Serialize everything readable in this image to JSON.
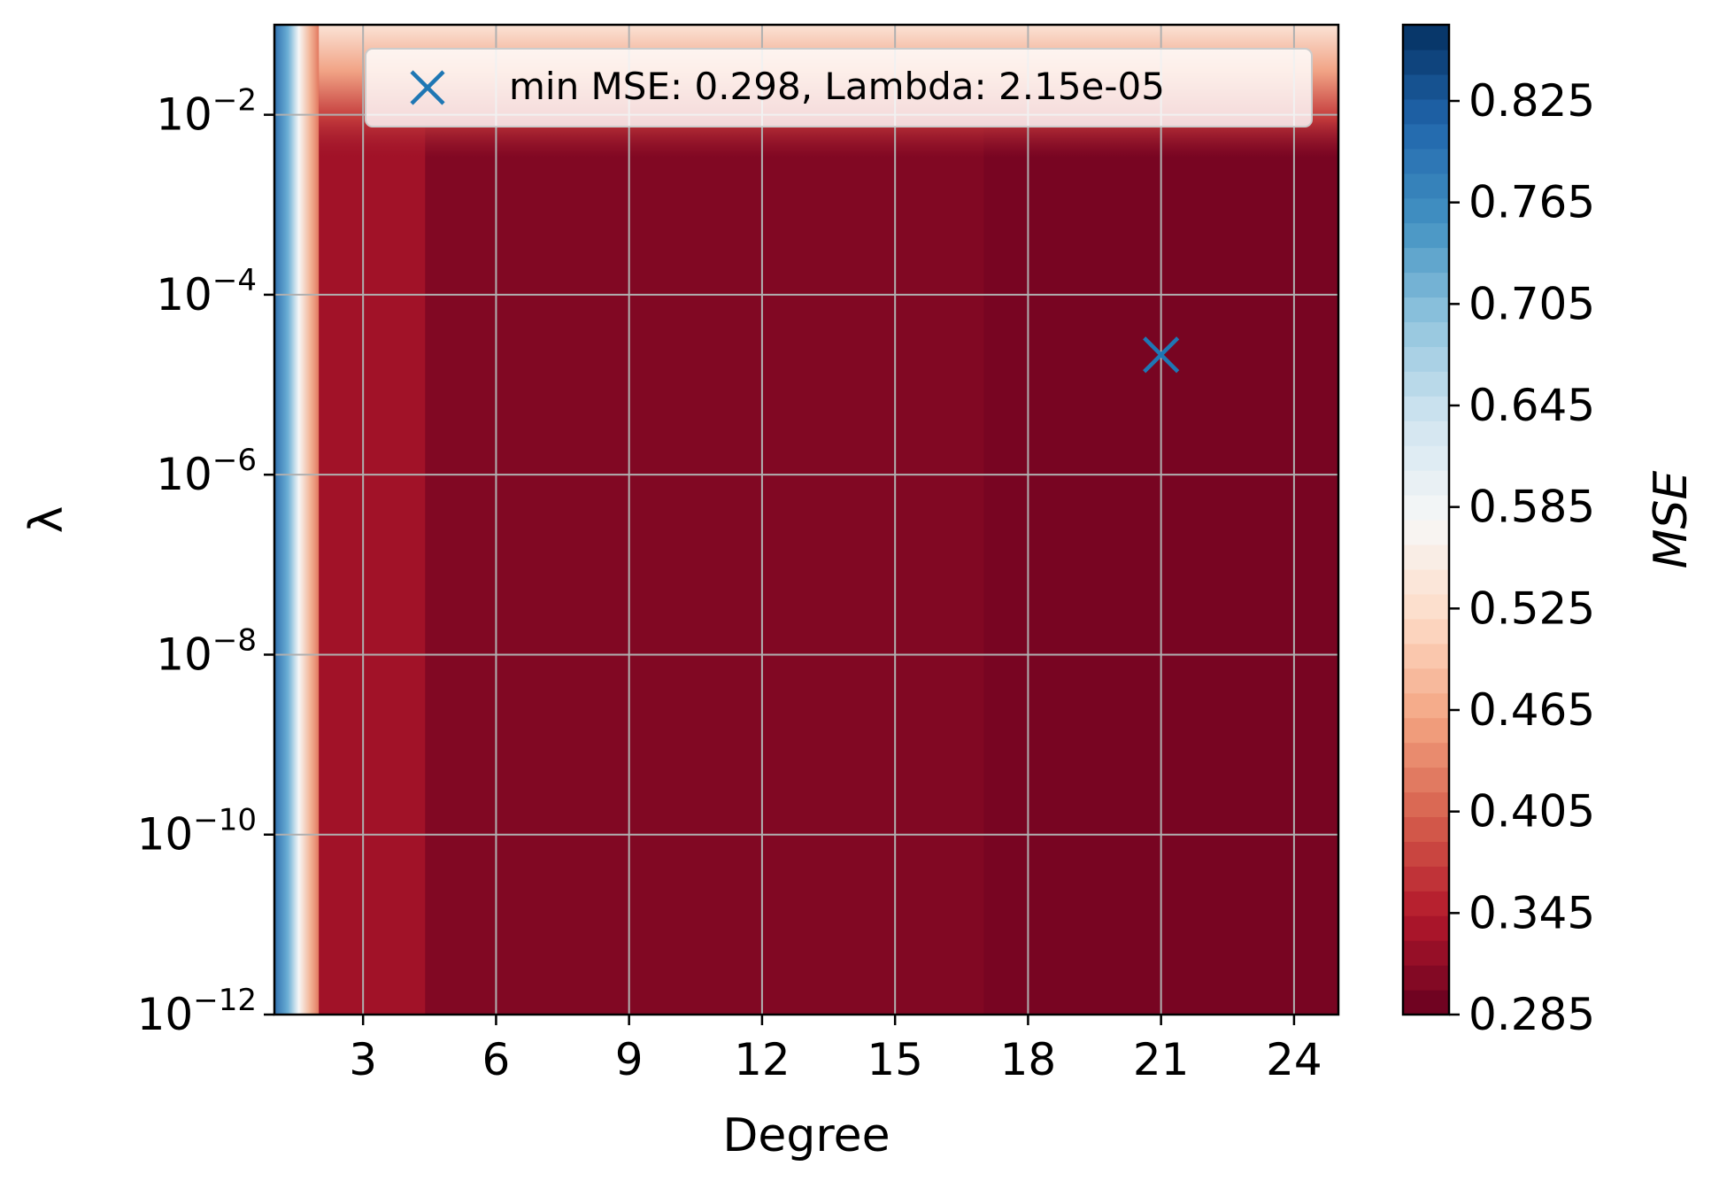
{
  "chart_data": {
    "type": "heatmap",
    "xlabel": "Degree",
    "ylabel": "λ",
    "x_ticks": [
      "3",
      "6",
      "9",
      "12",
      "15",
      "18",
      "21",
      "24"
    ],
    "x_tick_values": [
      3,
      6,
      9,
      12,
      15,
      18,
      21,
      24
    ],
    "xlim": [
      1,
      25
    ],
    "y_scale": "log",
    "y_tick_exponents": [
      -2,
      -4,
      -6,
      -8,
      -10,
      -12
    ],
    "y_tick_base": "10",
    "y_tick_sups": [
      "−2",
      "−4",
      "−6",
      "−8",
      "−10",
      "−12"
    ],
    "ylim": [
      1e-12,
      0.1
    ],
    "grid": true,
    "colorbar": {
      "label": "MSE",
      "ticks": [
        "0.285",
        "0.345",
        "0.405",
        "0.465",
        "0.525",
        "0.585",
        "0.645",
        "0.705",
        "0.765",
        "0.825"
      ],
      "tick_values": [
        0.285,
        0.345,
        0.405,
        0.465,
        0.525,
        0.585,
        0.645,
        0.705,
        0.765,
        0.825
      ],
      "range": [
        0.285,
        0.87
      ],
      "colormap": "RdBu"
    },
    "regions": [
      {
        "degree_range": [
          1,
          1.3
        ],
        "mse": 0.87
      },
      {
        "degree_range": [
          1.3,
          1.6
        ],
        "mse": 0.6
      },
      {
        "degree_range": [
          1.6,
          2.0
        ],
        "mse": 0.45
      },
      {
        "degree_range": [
          2.0,
          4.4
        ],
        "mse": 0.33
      },
      {
        "degree_range": [
          4.4,
          17
        ],
        "mse": 0.305
      },
      {
        "degree_range": [
          17,
          25
        ],
        "mse": 0.298
      }
    ],
    "marker": {
      "degree": 21,
      "lambda": 2.15e-05,
      "symbol": "x",
      "color": "#1f77b4",
      "legend": "min MSE: 0.298, Lambda: 2.15e-05"
    },
    "legend_position": "top-right"
  }
}
